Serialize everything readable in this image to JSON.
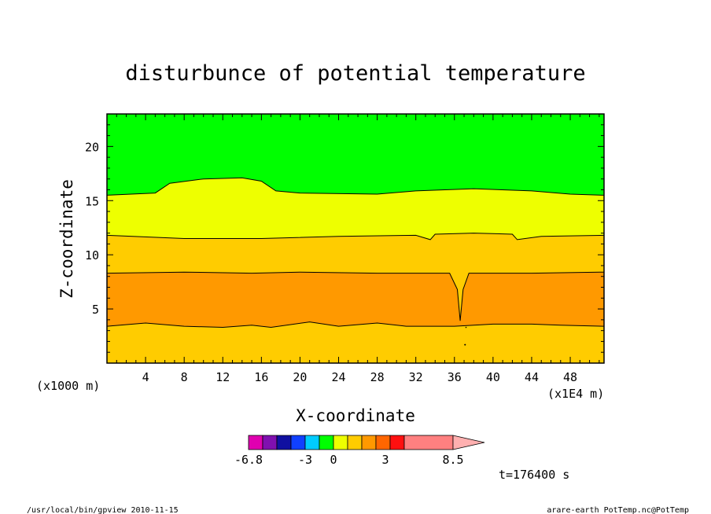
{
  "chart_data": {
    "type": "heatmap",
    "title": "disturbunce of potential temperature",
    "xlabel": "X-coordinate",
    "ylabel": "Z-coordinate",
    "x_unit": "(x1E4 m)",
    "z_unit": "(x1000 m)",
    "xlim": [
      0,
      51.5
    ],
    "ylim": [
      0,
      23
    ],
    "xticks": [
      4,
      8,
      12,
      16,
      20,
      24,
      28,
      32,
      36,
      40,
      44,
      48
    ],
    "yticks": [
      5,
      10,
      15,
      20
    ],
    "bands": [
      {
        "z_top": 3.4,
        "color": "#ffcc00",
        "level": 1.5
      },
      {
        "z_top": 8.3,
        "color": "#ff9900",
        "level": 2.5
      },
      {
        "z_top": 11.8,
        "color": "#ffcc00",
        "level": 1.5
      },
      {
        "z_top": 15.5,
        "color": "#eeff00",
        "level": 0.5
      },
      {
        "z_top": 23,
        "color": "#00ff00",
        "level": -0.5
      }
    ],
    "colorbar": {
      "colors": [
        "#e000b0",
        "#8010b0",
        "#1010a0",
        "#1040ff",
        "#00ccff",
        "#00ff00",
        "#eeff00",
        "#ffcc00",
        "#ff9900",
        "#ff6600",
        "#ff1010",
        "#ff8080",
        "#ffb0b0"
      ],
      "tick_labels": [
        "-6.8",
        "-3",
        "0",
        "3",
        "8.5"
      ]
    },
    "time_label": "t=176400 s"
  },
  "footer": {
    "left": "/usr/local/bin/gpview  2010-11-15",
    "right": "arare-earth_PotTemp.nc@PotTemp"
  }
}
